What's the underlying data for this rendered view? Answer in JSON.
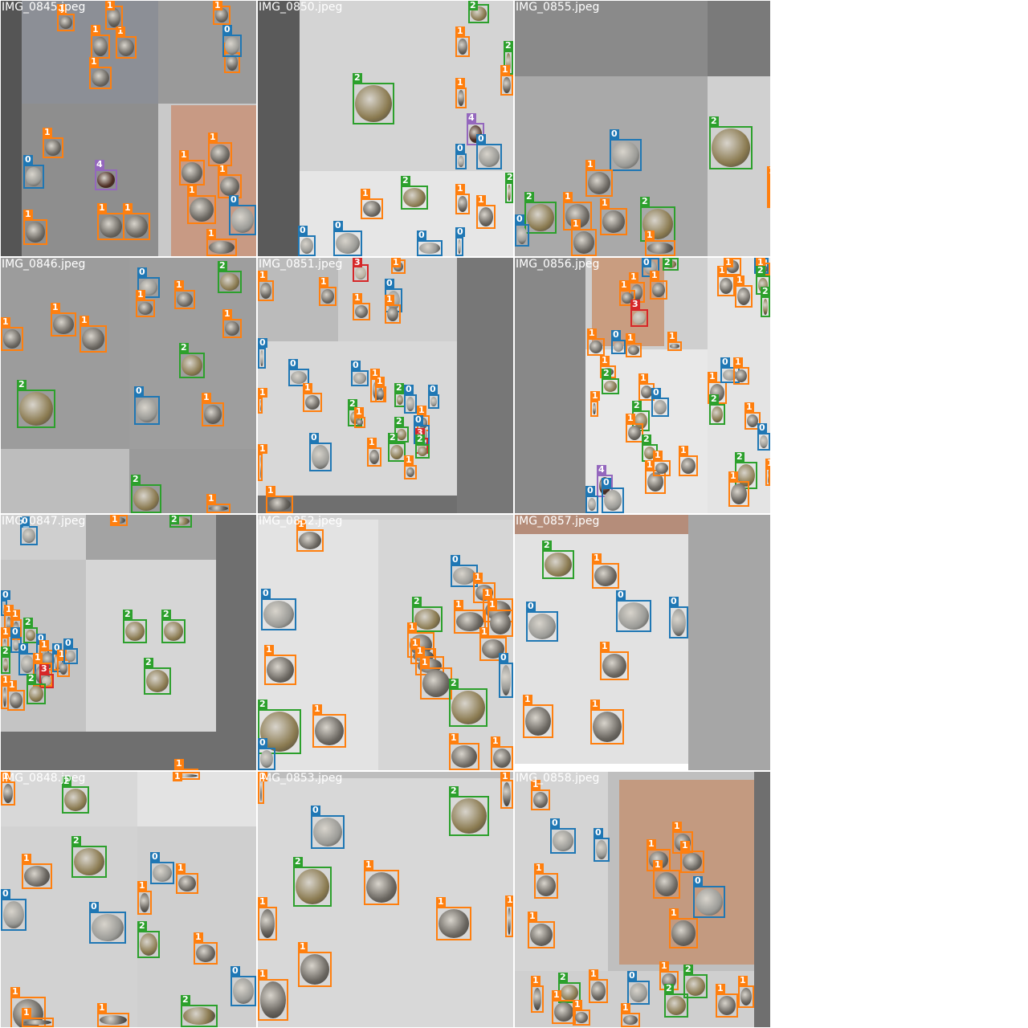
{
  "classes": {
    "0": {
      "color": "#1f77b4",
      "label": "0"
    },
    "1": {
      "color": "#ff7f0e",
      "label": "1"
    },
    "2": {
      "color": "#2ca02c",
      "label": "2"
    },
    "3": {
      "color": "#d62728",
      "label": "3"
    },
    "4": {
      "color": "#9467bd",
      "label": "4"
    }
  },
  "tiles": [
    {
      "file": "IMG_0845.jpeg",
      "col": 0,
      "row": 0
    },
    {
      "file": "IMG_0850.jpeg",
      "col": 1,
      "row": 0
    },
    {
      "file": "IMG_0855.jpeg",
      "col": 2,
      "row": 0
    },
    {
      "file": "IMG_0846.jpeg",
      "col": 0,
      "row": 1
    },
    {
      "file": "IMG_0851.jpeg",
      "col": 1,
      "row": 1
    },
    {
      "file": "IMG_0856.jpeg",
      "col": 2,
      "row": 1
    },
    {
      "file": "IMG_0847.jpeg",
      "col": 0,
      "row": 2
    },
    {
      "file": "IMG_0852.jpeg",
      "col": 1,
      "row": 2
    },
    {
      "file": "IMG_0857.jpeg",
      "col": 2,
      "row": 2
    },
    {
      "file": "IMG_0848.jpeg",
      "col": 0,
      "row": 3
    },
    {
      "file": "IMG_0853.jpeg",
      "col": 1,
      "row": 3
    },
    {
      "file": "IMG_0858.jpeg",
      "col": 2,
      "row": 3
    }
  ]
}
